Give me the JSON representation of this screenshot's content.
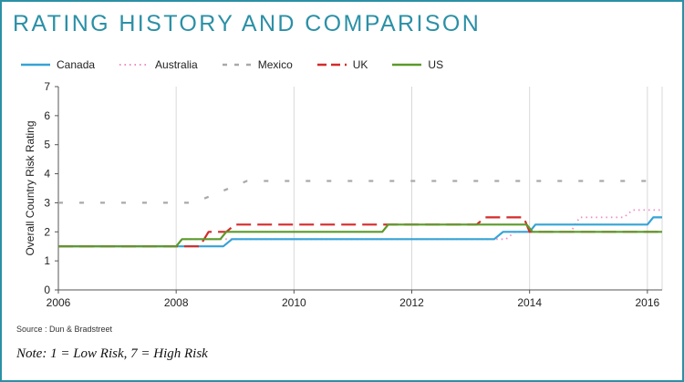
{
  "title": "RATING HISTORY AND COMPARISON",
  "source": "Source : Dun & Bradstreet",
  "note": "Note: 1 = Low Risk, 7 = High Risk",
  "colors": {
    "border": "#2b90a6",
    "Canada": "#35a3d6",
    "Australia": "#f08ac2",
    "Mexico": "#a9a9a9",
    "UK": "#d62a2a",
    "US": "#5a9a2a"
  },
  "chart_data": {
    "type": "line",
    "title": "RATING HISTORY AND COMPARISON",
    "xlabel": "",
    "ylabel": "Overall Country Risk Rating",
    "xlim": [
      2006,
      2016.25
    ],
    "ylim": [
      0,
      7
    ],
    "x_ticks": [
      "2006",
      "2008",
      "2010",
      "2012",
      "2014",
      "2016"
    ],
    "y_ticks": [
      "0",
      "1",
      "2",
      "3",
      "4",
      "5",
      "6",
      "7"
    ],
    "grid": "vertical",
    "legend_position": "top",
    "series": [
      {
        "name": "Canada",
        "style": "solid",
        "points": [
          [
            2006,
            1.5
          ],
          [
            2008.8,
            1.5
          ],
          [
            2008.95,
            1.75
          ],
          [
            2013.4,
            1.75
          ],
          [
            2013.55,
            2.0
          ],
          [
            2014.0,
            2.0
          ],
          [
            2014.1,
            2.25
          ],
          [
            2016.0,
            2.25
          ],
          [
            2016.1,
            2.5
          ],
          [
            2016.25,
            2.5
          ]
        ]
      },
      {
        "name": "Australia",
        "style": "dotted",
        "points": [
          [
            2006,
            1.5
          ],
          [
            2008.0,
            1.5
          ],
          [
            2008.1,
            1.75
          ],
          [
            2013.6,
            1.75
          ],
          [
            2013.75,
            2.0
          ],
          [
            2014.7,
            2.0
          ],
          [
            2014.85,
            2.5
          ],
          [
            2015.6,
            2.5
          ],
          [
            2015.75,
            2.75
          ],
          [
            2016.25,
            2.75
          ]
        ]
      },
      {
        "name": "Mexico",
        "style": "dashed",
        "points": [
          [
            2006,
            3.0
          ],
          [
            2008.3,
            3.0
          ],
          [
            2008.6,
            3.25
          ],
          [
            2008.9,
            3.5
          ],
          [
            2009.2,
            3.75
          ],
          [
            2016.25,
            3.75
          ]
        ]
      },
      {
        "name": "UK",
        "style": "dashed",
        "points": [
          [
            2006,
            1.5
          ],
          [
            2008.4,
            1.5
          ],
          [
            2008.55,
            2.0
          ],
          [
            2008.85,
            2.0
          ],
          [
            2009.0,
            2.25
          ],
          [
            2013.1,
            2.25
          ],
          [
            2013.25,
            2.5
          ],
          [
            2013.9,
            2.5
          ],
          [
            2014.0,
            2.0
          ],
          [
            2016.25,
            2.0
          ]
        ]
      },
      {
        "name": "US",
        "style": "solid",
        "points": [
          [
            2006,
            1.5
          ],
          [
            2008.0,
            1.5
          ],
          [
            2008.1,
            1.75
          ],
          [
            2008.75,
            1.75
          ],
          [
            2008.85,
            2.0
          ],
          [
            2011.5,
            2.0
          ],
          [
            2011.6,
            2.25
          ],
          [
            2013.95,
            2.25
          ],
          [
            2014.05,
            2.0
          ],
          [
            2016.25,
            2.0
          ]
        ]
      }
    ]
  }
}
